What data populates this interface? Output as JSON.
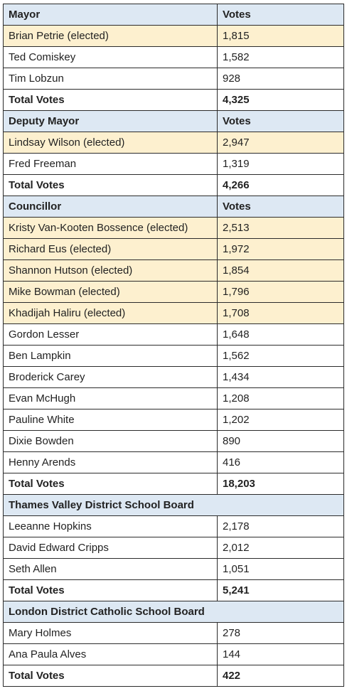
{
  "sections": [
    {
      "title": "Mayor",
      "votes_header": "Votes",
      "candidates": [
        {
          "name": "Brian Petrie (elected)",
          "votes": "1,815",
          "elected": true
        },
        {
          "name": "Ted Comiskey",
          "votes": "1,582",
          "elected": false
        },
        {
          "name": "Tim Lobzun",
          "votes": "928",
          "elected": false
        }
      ],
      "total_label": "Total Votes",
      "total": "4,325"
    },
    {
      "title": "Deputy Mayor",
      "votes_header": "Votes",
      "candidates": [
        {
          "name": "Lindsay Wilson (elected)",
          "votes": "2,947",
          "elected": true
        },
        {
          "name": "Fred Freeman",
          "votes": "1,319",
          "elected": false
        }
      ],
      "total_label": "Total Votes",
      "total": "4,266"
    },
    {
      "title": "Councillor",
      "votes_header": "Votes",
      "candidates": [
        {
          "name": "Kristy Van-Kooten Bossence (elected)",
          "votes": "2,513",
          "elected": true
        },
        {
          "name": "Richard Eus (elected)",
          "votes": "1,972",
          "elected": true
        },
        {
          "name": "Shannon Hutson (elected)",
          "votes": "1,854",
          "elected": true
        },
        {
          "name": "Mike Bowman (elected)",
          "votes": "1,796",
          "elected": true
        },
        {
          "name": "Khadijah Haliru (elected)",
          "votes": "1,708",
          "elected": true
        },
        {
          "name": "Gordon Lesser",
          "votes": "1,648",
          "elected": false
        },
        {
          "name": "Ben Lampkin",
          "votes": "1,562",
          "elected": false
        },
        {
          "name": "Broderick Carey",
          "votes": "1,434",
          "elected": false
        },
        {
          "name": "Evan McHugh",
          "votes": "1,208",
          "elected": false
        },
        {
          "name": "Pauline White",
          "votes": "1,202",
          "elected": false
        },
        {
          "name": "Dixie Bowden",
          "votes": "890",
          "elected": false
        },
        {
          "name": "Henny Arends",
          "votes": "416",
          "elected": false
        }
      ],
      "total_label": "Total Votes",
      "total": "18,203"
    },
    {
      "title": "Thames Valley District School Board",
      "votes_header": "",
      "candidates": [
        {
          "name": "Leeanne Hopkins",
          "votes": "2,178",
          "elected": false
        },
        {
          "name": "David Edward Cripps",
          "votes": "2,012",
          "elected": false
        },
        {
          "name": "Seth Allen",
          "votes": "1,051",
          "elected": false
        }
      ],
      "total_label": "Total Votes",
      "total": "5,241"
    },
    {
      "title": "London District Catholic School Board",
      "votes_header": "",
      "candidates": [
        {
          "name": "Mary Holmes",
          "votes": "278",
          "elected": false
        },
        {
          "name": "Ana Paula Alves",
          "votes": "144",
          "elected": false
        }
      ],
      "total_label": "Total Votes",
      "total": "422"
    }
  ],
  "colors": {
    "header_bg": "#dde8f3",
    "elected_bg": "#fdf0cf",
    "border": "#2b2b2b",
    "text": "#222222"
  }
}
